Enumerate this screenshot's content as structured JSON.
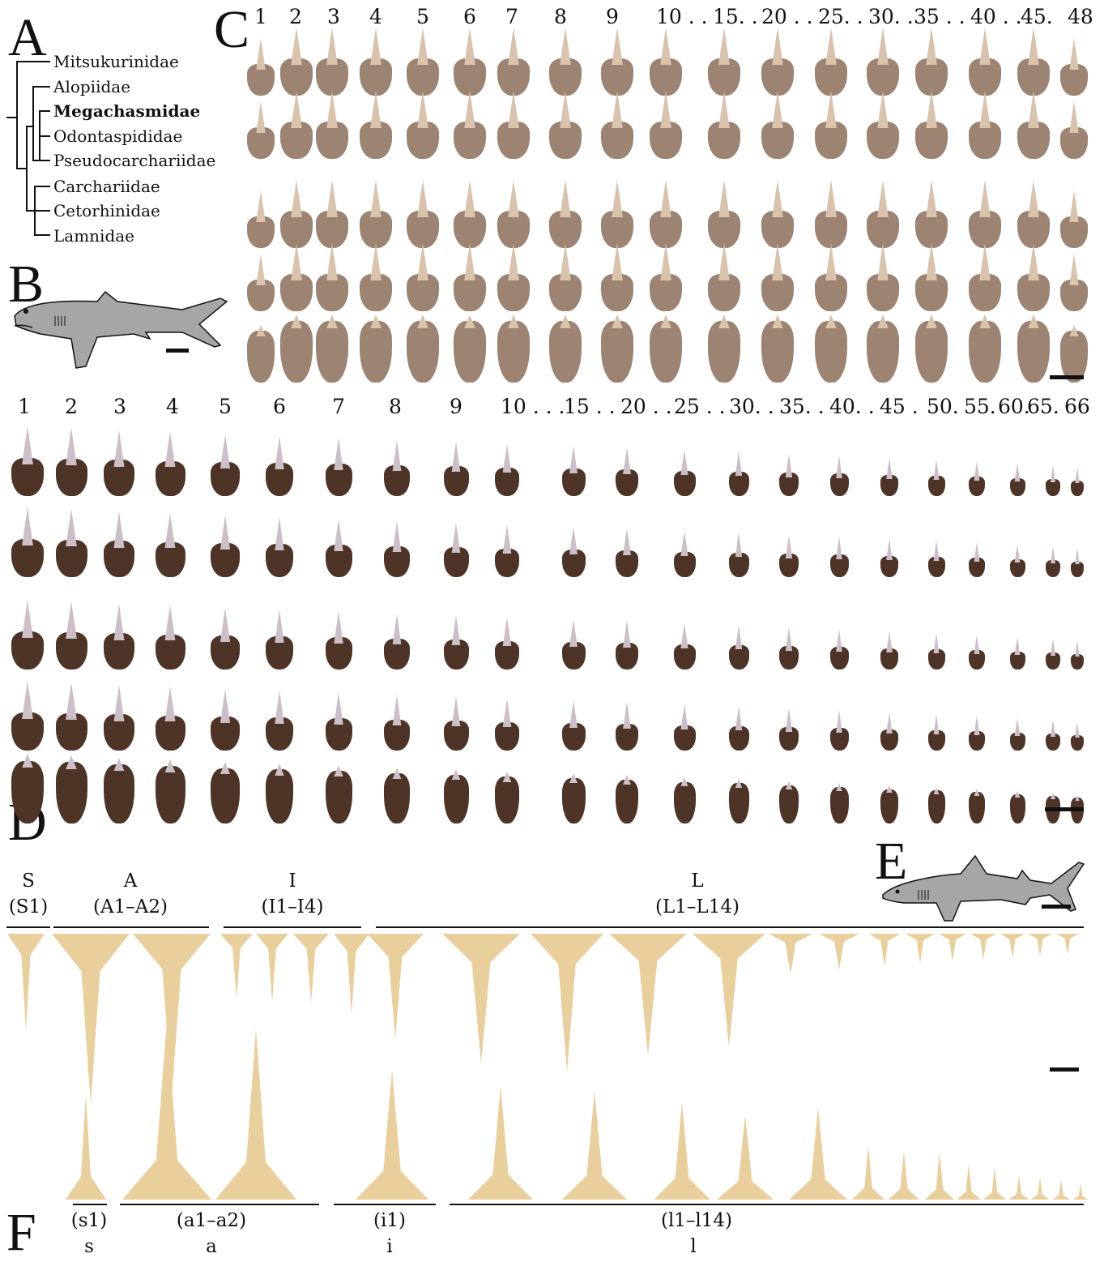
{
  "panels": {
    "A": "A",
    "B": "B",
    "C": "C",
    "D": "D",
    "E": "E",
    "F": "F"
  },
  "phylogeny": {
    "taxa": [
      {
        "name": "Mitsukurinidae",
        "bold": false
      },
      {
        "name": "Alopiidae",
        "bold": false
      },
      {
        "name": "Megachasmidae",
        "bold": true
      },
      {
        "name": "Odontaspididae",
        "bold": false
      },
      {
        "name": "Pseudocarchariidae",
        "bold": false
      },
      {
        "name": "Carchariidae",
        "bold": false
      },
      {
        "name": "Cetorhinidae",
        "bold": false
      },
      {
        "name": "Lamnidae",
        "bold": false
      }
    ]
  },
  "panel_c": {
    "numbers": [
      "1",
      "2",
      "3",
      "4",
      "5",
      "6",
      "7",
      "8",
      "9",
      "10 . .",
      "15. .",
      "20 . .",
      "25. .",
      "30. .",
      "35 . .",
      "40 . .",
      "45.",
      "48"
    ],
    "rows": 5,
    "tooth_color": "#9c8372",
    "crown_color": "#d9c3ad"
  },
  "panel_d": {
    "numbers": [
      "1",
      "2",
      "3",
      "4",
      "5",
      "6",
      "7",
      "8",
      "9",
      "10 . . .",
      "15 . .",
      "20 . .",
      "25 . .",
      "30. .",
      "35. .",
      "40. .",
      "45 .",
      "50.",
      "55.",
      "60.",
      "65.",
      "66"
    ],
    "rows": 5,
    "tooth_color": "#4e3426",
    "crown_color": "#cdbfc7"
  },
  "panel_f": {
    "upper_groups": [
      {
        "code": "S",
        "range": "(S1)"
      },
      {
        "code": "A",
        "range": "(A1–A2)"
      },
      {
        "code": "I",
        "range": "(I1–I4)"
      },
      {
        "code": "L",
        "range": "(L1–L14)"
      }
    ],
    "lower_groups": [
      {
        "range": "(s1)",
        "code": "s"
      },
      {
        "range": "(a1–a2)",
        "code": "a"
      },
      {
        "range": "(i1)",
        "code": "i"
      },
      {
        "range": "(l1–l14)",
        "code": "l"
      }
    ],
    "tooth_color": "#e9cf9c"
  },
  "icons": [
    "megamouth-shark-silhouette",
    "sand-tiger-shark-silhouette",
    "scale-bar"
  ]
}
